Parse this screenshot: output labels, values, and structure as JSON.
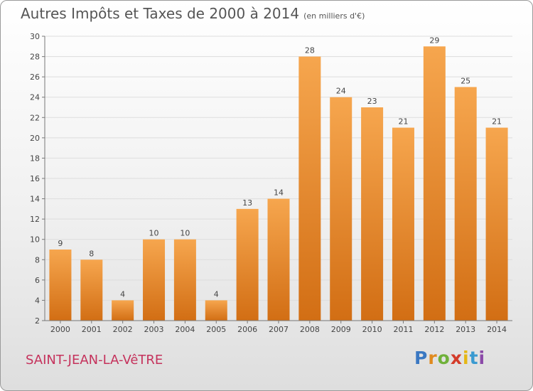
{
  "title": "Autres Impôts et Taxes de 2000 à 2014",
  "subtitle": "(en milliers d'€)",
  "city": "SAINT-JEAN-LA-VêTRE",
  "logo": {
    "text": "Proxiti"
  },
  "colors": {
    "bar_top": "#f6a64e",
    "bar_bottom": "#d26e14",
    "axis": "#777777",
    "grid": "#dddddd"
  },
  "chart_data": {
    "type": "bar",
    "categories": [
      "2000",
      "2001",
      "2002",
      "2003",
      "2004",
      "2005",
      "2006",
      "2007",
      "2008",
      "2009",
      "2010",
      "2011",
      "2012",
      "2013",
      "2014"
    ],
    "values": [
      9,
      8,
      4,
      10,
      10,
      4,
      13,
      14,
      28,
      24,
      23,
      21,
      29,
      25,
      21
    ],
    "title": "Autres Impôts et Taxes de 2000 à 2014",
    "subtitle": "(en milliers d'€)",
    "xlabel": "",
    "ylabel": "",
    "ylim": [
      2,
      30
    ],
    "yticks": [
      2,
      4,
      6,
      8,
      10,
      12,
      14,
      16,
      18,
      20,
      22,
      24,
      26,
      28,
      30
    ],
    "grid": true,
    "legend": "none"
  }
}
